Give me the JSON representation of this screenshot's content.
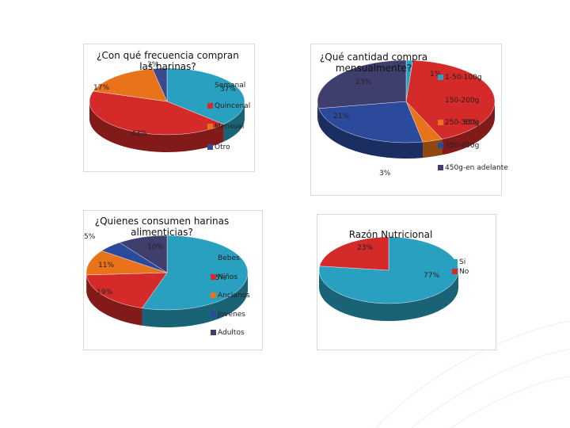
{
  "chart_data": [
    {
      "type": "pie",
      "title": "¿Con qué frecuencia compran las harinas?",
      "categories": [
        "Semanal",
        "Quincenal",
        "Mensual",
        "Otro"
      ],
      "values": [
        37,
        43,
        17,
        3
      ],
      "labels": [
        "37%",
        "43%",
        "17%",
        "3%"
      ],
      "colors": [
        "#2aa0c0",
        "#d42a2a",
        "#e8731a",
        "#3a4a8c"
      ],
      "legend": "right"
    },
    {
      "type": "pie",
      "title": "¿Qué cantidad compra mensualmente?",
      "categories": [
        "1-50-100g",
        "150-200g",
        "250-300g",
        "350-400g",
        "450g-en adelante"
      ],
      "values": [
        1,
        35,
        3,
        21,
        23
      ],
      "labels": [
        "1%",
        "35%",
        "3%",
        "21%",
        "23%"
      ],
      "colors": [
        "#2aa0c0",
        "#d42a2a",
        "#e8731a",
        "#2b4a9c",
        "#3f3f6e"
      ],
      "legend": "right"
    },
    {
      "type": "pie",
      "title": "¿Quienes consumen harinas alimenticias?",
      "categories": [
        "Bebes",
        "Niños",
        "Ancianos",
        "Jovenes",
        "Adultos"
      ],
      "values": [
        55,
        19,
        11,
        5,
        10
      ],
      "labels": [
        "55%",
        "19%",
        "11%",
        "5%",
        "10%"
      ],
      "colors": [
        "#2aa0c0",
        "#d42a2a",
        "#e8731a",
        "#2b4a9c",
        "#3f3f6e"
      ],
      "legend": "right"
    },
    {
      "type": "pie",
      "title": "Razón Nutricional",
      "categories": [
        "Si",
        "No"
      ],
      "values": [
        77,
        23
      ],
      "labels": [
        "77%",
        "23%"
      ],
      "colors": [
        "#2aa0c0",
        "#d42a2a"
      ],
      "legend": "right"
    }
  ]
}
